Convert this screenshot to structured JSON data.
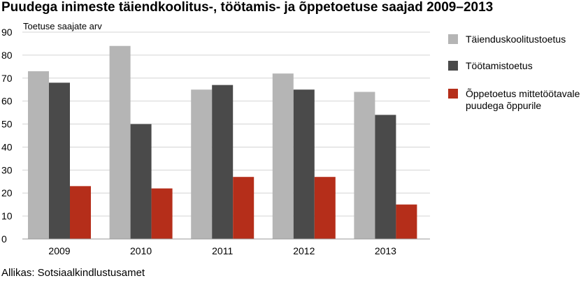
{
  "title": "Puudega inimeste täiendkoolitus-, töötamis- ja õppetoetuse saajad 2009–2013",
  "source": "Allikas: Sotsiaalkindlustusamet",
  "chart_data": {
    "type": "bar",
    "title": "Puudega inimeste täiendkoolitus-, töötamis- ja õppetoetuse saajad 2009–2013",
    "ylabel": "Toetuse saajate arv",
    "xlabel": "",
    "categories": [
      "2009",
      "2010",
      "2011",
      "2012",
      "2013"
    ],
    "ylim": [
      0,
      90
    ],
    "yticks": [
      0,
      10,
      20,
      30,
      40,
      50,
      60,
      70,
      80,
      90
    ],
    "grid": true,
    "legend_position": "right",
    "series": [
      {
        "name": "Täienduskoolitustoetus",
        "color": "#b5b5b5",
        "values": [
          73,
          84,
          65,
          72,
          64
        ]
      },
      {
        "name": "Töötamistoetus",
        "color": "#4a4a4a",
        "values": [
          68,
          50,
          67,
          65,
          54
        ]
      },
      {
        "name": "Õppetoetus mittetöötavale puudega õppurile",
        "color": "#b52e1a",
        "values": [
          23,
          22,
          27,
          27,
          15
        ]
      }
    ],
    "legend_lines": [
      [
        "Täienduskoolitustoetus"
      ],
      [
        "Töötamistoetus"
      ],
      [
        "Õppetoetus mittetöötavale",
        "puudega õppurile"
      ]
    ]
  }
}
